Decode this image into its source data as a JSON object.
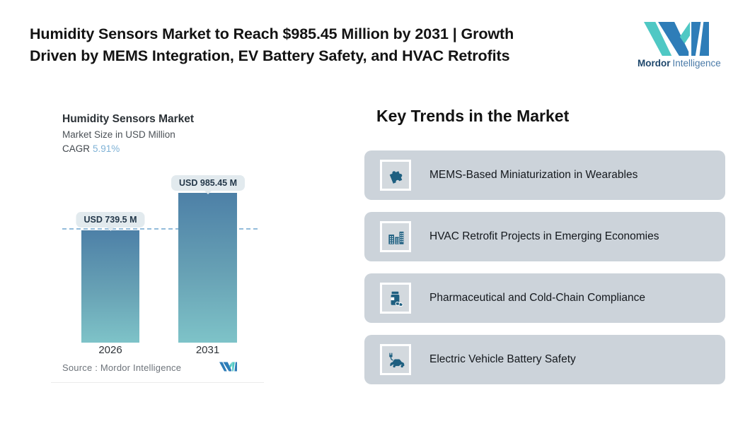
{
  "header": {
    "title_line1": "Humidity Sensors Market to Reach $985.45 Million by 2031 | Growth",
    "title_line2": "Driven by MEMS Integration, EV Battery Safety, and HVAC Retrofits"
  },
  "brand": {
    "name_bold": "Mordor",
    "name_regular": "Intelligence"
  },
  "chart": {
    "title": "Humidity Sensors Market",
    "subtitle": "Market Size in USD Million",
    "cagr_label": "CAGR",
    "cagr_value": "5.91%",
    "bars": [
      {
        "year": "2026",
        "value_label": "USD 739.5 M"
      },
      {
        "year": "2031",
        "value_label": "USD 985.45 M"
      }
    ],
    "source": "Source :  Mordor Intelligence"
  },
  "chart_data": {
    "type": "bar",
    "title": "Humidity Sensors Market",
    "subtitle": "Market Size in USD Million",
    "unit": "USD Million",
    "cagr_percent": 5.91,
    "categories": [
      "2026",
      "2031"
    ],
    "values": [
      739.5,
      985.45
    ],
    "value_labels": [
      "USD 739.5 M",
      "USD 985.45 M"
    ],
    "ylim": [
      0,
      1000
    ],
    "reference_line_value": 739.5,
    "grid": "off",
    "legend": "none",
    "source": "Mordor Intelligence"
  },
  "trends": {
    "heading": "Key Trends in the Market",
    "items": [
      {
        "icon": "puzzle-icon",
        "label": "MEMS-Based Miniaturization in Wearables"
      },
      {
        "icon": "buildings-icon",
        "label": "HVAC Retrofit Projects in Emerging Economies"
      },
      {
        "icon": "pill-bottle-icon",
        "label": "Pharmaceutical and Cold-Chain Compliance"
      },
      {
        "icon": "electric-car-icon",
        "label": "Electric Vehicle Battery Safety"
      }
    ]
  },
  "colors": {
    "bar_gradient_top": "#4d80a7",
    "bar_gradient_bottom": "#7ec3c8",
    "dashed_reference_line": "#93bcdb",
    "value_pill_bg": "#e2eaee",
    "value_pill_text": "#24384a",
    "cagr_value_text": "#7fb2d6",
    "trend_card_bg": "#ccd3da",
    "trend_icon_blue": "#1e5f80",
    "brand_blue": "#2e7db8",
    "brand_teal": "#4fc8c4"
  }
}
